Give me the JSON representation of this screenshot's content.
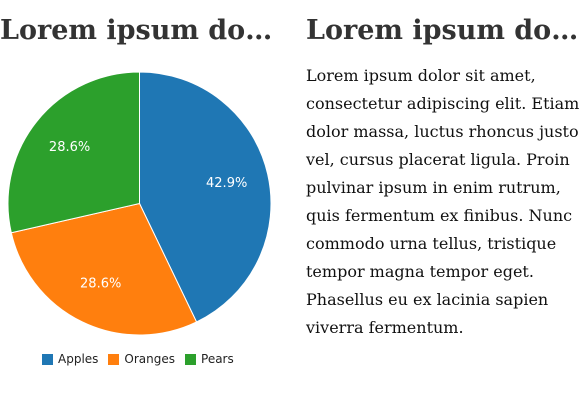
{
  "left_panel": {
    "title": "Lorem ipsum do…"
  },
  "right_panel": {
    "title": "Lorem ipsum do…",
    "text": "Lorem ipsum dolor sit amet, consectetur adipiscing elit. Etiam dolor massa, luctus rhoncus justo vel, cursus placerat ligula. Proin pulvinar ipsum in enim rutrum, quis fermentum ex finibus. Nunc commodo urna tellus, tristique tempor magna tempor eget. Phasellus eu ex lacinia sapien viverra fermentum."
  },
  "chart_data": {
    "type": "pie",
    "title": "",
    "slices": [
      {
        "label": "Apples",
        "value": 42.9,
        "display": "42.9%",
        "color": "#1f77b4"
      },
      {
        "label": "Oranges",
        "value": 28.6,
        "display": "28.6%",
        "color": "#ff7f0e"
      },
      {
        "label": "Pears",
        "value": 28.6,
        "display": "28.6%",
        "color": "#2ca02c"
      }
    ],
    "start_angle": "12 o'clock",
    "direction": "clockwise",
    "legend_position": "bottom"
  }
}
